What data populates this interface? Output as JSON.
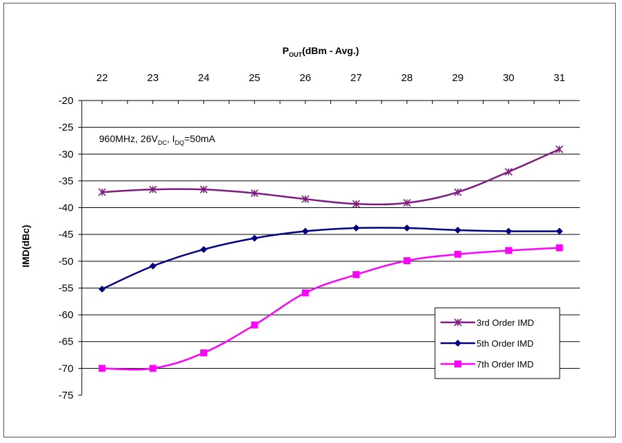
{
  "chart_data": {
    "type": "line",
    "x_axis": {
      "title_main": "P",
      "title_sub": "OUT",
      "title_rest": "(dBm - Avg.)",
      "position": "top",
      "ticks": [
        22,
        23,
        24,
        25,
        26,
        27,
        28,
        29,
        30,
        31
      ],
      "range": [
        21.6,
        31.4
      ]
    },
    "y_axis": {
      "title": "IMD(dBc)",
      "ticks": [
        -20,
        -25,
        -30,
        -35,
        -40,
        -45,
        -50,
        -55,
        -60,
        -65,
        -70,
        -75
      ],
      "range": [
        -75,
        -20
      ]
    },
    "grid": "horizontal",
    "annotation": {
      "a": "960MHz, 26V",
      "a_sub": "DC",
      "b": ", I",
      "b_sub": "DQ",
      "c": "=50mA"
    },
    "legend_position": "bottom-right",
    "series": [
      {
        "name": "3rd Order IMD",
        "color": "#7F1A7F",
        "marker": "star",
        "x": [
          22,
          23,
          24,
          25,
          26,
          27,
          28,
          29,
          30,
          31
        ],
        "y": [
          -37.1,
          -36.6,
          -36.6,
          -37.3,
          -38.4,
          -39.3,
          -39.1,
          -37.1,
          -33.3,
          -29.1
        ]
      },
      {
        "name": "5th Order IMD",
        "color": "#000080",
        "marker": "diamond",
        "x": [
          22,
          23,
          24,
          25,
          26,
          27,
          28,
          29,
          30,
          31
        ],
        "y": [
          -55.2,
          -50.9,
          -47.8,
          -45.7,
          -44.4,
          -43.8,
          -43.8,
          -44.2,
          -44.4,
          -44.4
        ]
      },
      {
        "name": "7th Order IMD",
        "color": "#FF00FF",
        "marker": "square",
        "x": [
          22,
          23,
          24,
          25,
          26,
          27,
          28,
          29,
          30,
          31
        ],
        "y": [
          -70.0,
          -70.0,
          -67.1,
          -61.9,
          -55.9,
          -52.5,
          -49.9,
          -48.7,
          -48.0,
          -47.5
        ]
      }
    ]
  }
}
